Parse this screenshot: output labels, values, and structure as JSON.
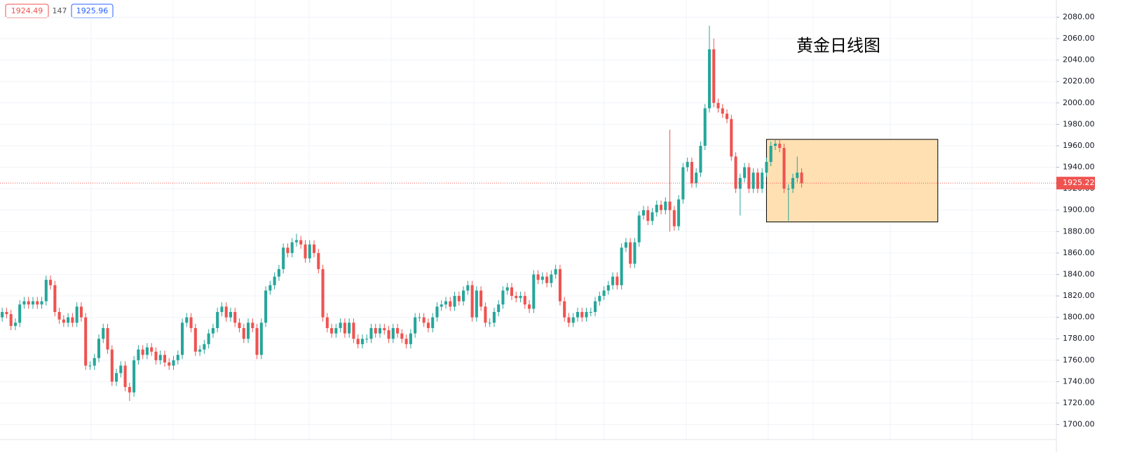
{
  "header": {
    "bid": "1924.49",
    "spread": "147",
    "ask": "1925.96"
  },
  "chart_data": {
    "type": "candlestick",
    "title": "黄金日线图",
    "up_color": "#26a69a",
    "down_color": "#ef5350",
    "grid": true,
    "xlim": [
      -0.5,
      240
    ],
    "ylim": [
      1686,
      2096
    ],
    "yticks": [
      {
        "value": 1700,
        "label": "1700.00"
      },
      {
        "value": 1720,
        "label": "1720.00"
      },
      {
        "value": 1740,
        "label": "1740.00"
      },
      {
        "value": 1760,
        "label": "1760.00"
      },
      {
        "value": 1780,
        "label": "1780.00"
      },
      {
        "value": 1800,
        "label": "1800.00"
      },
      {
        "value": 1820,
        "label": "1820.00"
      },
      {
        "value": 1840,
        "label": "1840.00"
      },
      {
        "value": 1860,
        "label": "1860.00"
      },
      {
        "value": 1880,
        "label": "1880.00"
      },
      {
        "value": 1900,
        "label": "1900.00"
      },
      {
        "value": 1920,
        "label": "1920.00"
      },
      {
        "value": 1940,
        "label": "1940.00"
      },
      {
        "value": 1960,
        "label": "1960.00"
      },
      {
        "value": 1980,
        "label": "1980.00"
      },
      {
        "value": 2000,
        "label": "2000.00"
      },
      {
        "value": 2020,
        "label": "2020.00"
      },
      {
        "value": 2040,
        "label": "2040.00"
      },
      {
        "value": 2060,
        "label": "2060.00"
      },
      {
        "value": 2080,
        "label": "2080.00"
      }
    ],
    "last_price": {
      "value": 1925.22,
      "label": "1925.22"
    },
    "annotation_box": {
      "x": [
        174,
        213
      ],
      "y": [
        1966,
        1889
      ],
      "color": "#ffe0b2"
    },
    "open": [
      1800,
      1805,
      1803,
      1792,
      1795,
      1812,
      1815,
      1812,
      1815,
      1812,
      1815,
      1835,
      1830,
      1805,
      1798,
      1795,
      1800,
      1795,
      1810,
      1800,
      1755,
      1755,
      1762,
      1780,
      1790,
      1770,
      1740,
      1748,
      1755,
      1735,
      1730,
      1760,
      1770,
      1765,
      1772,
      1768,
      1760,
      1765,
      1758,
      1755,
      1760,
      1765,
      1795,
      1800,
      1790,
      1768,
      1770,
      1775,
      1785,
      1790,
      1805,
      1810,
      1800,
      1805,
      1795,
      1790,
      1780,
      1795,
      1790,
      1765,
      1795,
      1825,
      1830,
      1838,
      1845,
      1865,
      1860,
      1870,
      1872,
      1868,
      1855,
      1868,
      1860,
      1845,
      1800,
      1790,
      1785,
      1790,
      1795,
      1785,
      1795,
      1780,
      1775,
      1780,
      1780,
      1790,
      1785,
      1790,
      1788,
      1780,
      1790,
      1785,
      1780,
      1775,
      1785,
      1800,
      1800,
      1795,
      1790,
      1800,
      1810,
      1812,
      1815,
      1810,
      1820,
      1815,
      1825,
      1830,
      1800,
      1825,
      1810,
      1795,
      1795,
      1805,
      1812,
      1825,
      1828,
      1820,
      1818,
      1820,
      1812,
      1808,
      1840,
      1835,
      1838,
      1832,
      1840,
      1845,
      1815,
      1800,
      1795,
      1800,
      1805,
      1800,
      1805,
      1805,
      1815,
      1820,
      1825,
      1830,
      1838,
      1830,
      1865,
      1870,
      1850,
      1870,
      1895,
      1900,
      1890,
      1898,
      1905,
      1900,
      1908,
      1900,
      1885,
      1910,
      1940,
      1945,
      1925,
      1935,
      1960,
      1995,
      2050,
      2000,
      1995,
      1990,
      1985,
      1950,
      1920,
      1930,
      1940,
      1920,
      1935,
      1920,
      1935,
      1945,
      1960,
      1962,
      1958,
      1920,
      1920,
      1930,
      1935
    ],
    "high": [
      1809,
      1809,
      1807,
      1799,
      1816,
      1819,
      1819,
      1819,
      1819,
      1819,
      1839,
      1839,
      1834,
      1809,
      1802,
      1804,
      1804,
      1814,
      1814,
      1804,
      1759,
      1766,
      1784,
      1794,
      1794,
      1774,
      1752,
      1759,
      1759,
      1739,
      1764,
      1774,
      1774,
      1776,
      1776,
      1772,
      1769,
      1769,
      1762,
      1764,
      1769,
      1799,
      1804,
      1804,
      1794,
      1774,
      1779,
      1789,
      1794,
      1809,
      1814,
      1814,
      1809,
      1809,
      1799,
      1794,
      1799,
      1799,
      1794,
      1799,
      1829,
      1834,
      1842,
      1849,
      1869,
      1869,
      1874,
      1878,
      1876,
      1872,
      1872,
      1872,
      1864,
      1849,
      1804,
      1794,
      1794,
      1799,
      1799,
      1799,
      1799,
      1784,
      1784,
      1784,
      1794,
      1794,
      1794,
      1794,
      1792,
      1794,
      1794,
      1789,
      1784,
      1789,
      1804,
      1804,
      1804,
      1799,
      1804,
      1814,
      1816,
      1819,
      1819,
      1824,
      1824,
      1829,
      1834,
      1834,
      1829,
      1829,
      1814,
      1799,
      1809,
      1816,
      1829,
      1832,
      1832,
      1824,
      1824,
      1824,
      1816,
      1844,
      1844,
      1842,
      1842,
      1844,
      1849,
      1849,
      1819,
      1804,
      1804,
      1809,
      1809,
      1809,
      1809,
      1819,
      1824,
      1829,
      1834,
      1842,
      1842,
      1869,
      1874,
      1874,
      1874,
      1899,
      1904,
      1904,
      1902,
      1909,
      1909,
      1912,
      1975,
      1904,
      1914,
      1944,
      1949,
      1949,
      1939,
      1964,
      1999,
      2072,
      2060,
      2004,
      1999,
      1994,
      1989,
      1954,
      1934,
      1944,
      1944,
      1939,
      1939,
      1939,
      1949,
      1964,
      1966,
      1966,
      1962,
      1924,
      1934,
      1950,
      1939
    ],
    "low": [
      1796,
      1799,
      1788,
      1788,
      1791,
      1808,
      1808,
      1808,
      1808,
      1808,
      1811,
      1826,
      1801,
      1794,
      1791,
      1791,
      1791,
      1791,
      1796,
      1751,
      1751,
      1751,
      1758,
      1776,
      1766,
      1736,
      1736,
      1744,
      1731,
      1722,
      1726,
      1756,
      1761,
      1761,
      1764,
      1756,
      1756,
      1754,
      1751,
      1751,
      1756,
      1761,
      1791,
      1786,
      1764,
      1764,
      1766,
      1771,
      1781,
      1786,
      1801,
      1796,
      1796,
      1791,
      1786,
      1776,
      1776,
      1786,
      1761,
      1761,
      1791,
      1821,
      1826,
      1834,
      1841,
      1856,
      1856,
      1866,
      1864,
      1851,
      1851,
      1856,
      1841,
      1796,
      1786,
      1781,
      1781,
      1786,
      1781,
      1781,
      1776,
      1771,
      1771,
      1776,
      1776,
      1781,
      1781,
      1784,
      1776,
      1776,
      1781,
      1776,
      1771,
      1771,
      1781,
      1796,
      1791,
      1786,
      1786,
      1796,
      1806,
      1808,
      1806,
      1806,
      1811,
      1811,
      1821,
      1796,
      1796,
      1806,
      1791,
      1791,
      1791,
      1801,
      1808,
      1821,
      1816,
      1814,
      1814,
      1808,
      1804,
      1804,
      1831,
      1831,
      1828,
      1828,
      1836,
      1811,
      1796,
      1791,
      1791,
      1796,
      1796,
      1796,
      1801,
      1801,
      1811,
      1816,
      1821,
      1826,
      1826,
      1826,
      1861,
      1846,
      1846,
      1866,
      1891,
      1886,
      1886,
      1894,
      1896,
      1896,
      1880,
      1881,
      1881,
      1906,
      1936,
      1921,
      1921,
      1931,
      1956,
      1991,
      1996,
      1991,
      1986,
      1981,
      1946,
      1916,
      1895,
      1926,
      1916,
      1916,
      1916,
      1916,
      1931,
      1941,
      1956,
      1954,
      1916,
      1890,
      1916,
      1926,
      1921
    ],
    "close": [
      1805,
      1803,
      1792,
      1795,
      1812,
      1815,
      1812,
      1815,
      1812,
      1815,
      1835,
      1830,
      1805,
      1798,
      1795,
      1800,
      1795,
      1810,
      1800,
      1755,
      1755,
      1762,
      1780,
      1790,
      1770,
      1740,
      1748,
      1755,
      1735,
      1730,
      1760,
      1770,
      1765,
      1772,
      1768,
      1760,
      1765,
      1758,
      1755,
      1760,
      1765,
      1795,
      1800,
      1790,
      1768,
      1770,
      1775,
      1785,
      1790,
      1805,
      1810,
      1800,
      1805,
      1795,
      1790,
      1780,
      1795,
      1790,
      1765,
      1795,
      1825,
      1830,
      1838,
      1845,
      1865,
      1860,
      1870,
      1872,
      1868,
      1855,
      1868,
      1860,
      1845,
      1800,
      1790,
      1785,
      1790,
      1795,
      1785,
      1795,
      1780,
      1775,
      1780,
      1780,
      1790,
      1785,
      1790,
      1788,
      1780,
      1790,
      1785,
      1780,
      1775,
      1785,
      1800,
      1800,
      1795,
      1790,
      1800,
      1810,
      1812,
      1815,
      1810,
      1820,
      1815,
      1825,
      1830,
      1800,
      1825,
      1810,
      1795,
      1795,
      1805,
      1812,
      1825,
      1828,
      1820,
      1818,
      1820,
      1812,
      1808,
      1840,
      1835,
      1838,
      1832,
      1840,
      1845,
      1815,
      1800,
      1795,
      1800,
      1805,
      1800,
      1805,
      1805,
      1815,
      1820,
      1825,
      1830,
      1838,
      1830,
      1865,
      1870,
      1850,
      1870,
      1895,
      1900,
      1890,
      1898,
      1905,
      1900,
      1908,
      1900,
      1885,
      1910,
      1940,
      1945,
      1925,
      1935,
      1960,
      1995,
      2050,
      2000,
      1995,
      1990,
      1985,
      1950,
      1920,
      1930,
      1940,
      1920,
      1935,
      1920,
      1935,
      1945,
      1960,
      1962,
      1958,
      1920,
      1920,
      1930,
      1935,
      1925
    ]
  }
}
